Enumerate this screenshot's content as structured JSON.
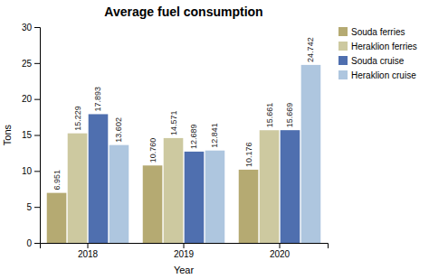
{
  "chart_data": {
    "type": "bar",
    "title": "Average fuel consumption",
    "xlabel": "Year",
    "ylabel": "Tons",
    "categories": [
      "2018",
      "2019",
      "2020"
    ],
    "series": [
      {
        "name": "Souda ferries",
        "color": "#b5aa72",
        "values": [
          6.951,
          10.76,
          10.176
        ],
        "value_labels": [
          "6.951",
          "10.760",
          "10.176"
        ]
      },
      {
        "name": "Heraklion ferries",
        "color": "#cdc9a0",
        "values": [
          15.229,
          14.571,
          15.661
        ],
        "value_labels": [
          "15.229",
          "14.571",
          "15.661"
        ]
      },
      {
        "name": "Souda cruise",
        "color": "#4f6faf",
        "values": [
          17.893,
          12.689,
          15.669
        ],
        "value_labels": [
          "17.893",
          "12.689",
          "15.669"
        ]
      },
      {
        "name": "Heraklion cruise",
        "color": "#aec6df",
        "values": [
          13.602,
          12.841,
          24.742
        ],
        "value_labels": [
          "13.602",
          "12.841",
          "24.742"
        ]
      }
    ],
    "ylim": [
      0,
      30
    ],
    "yticks": [
      0,
      5,
      10,
      15,
      20,
      25,
      30
    ],
    "legend": "upper right",
    "data_labels": true,
    "grid": false
  }
}
